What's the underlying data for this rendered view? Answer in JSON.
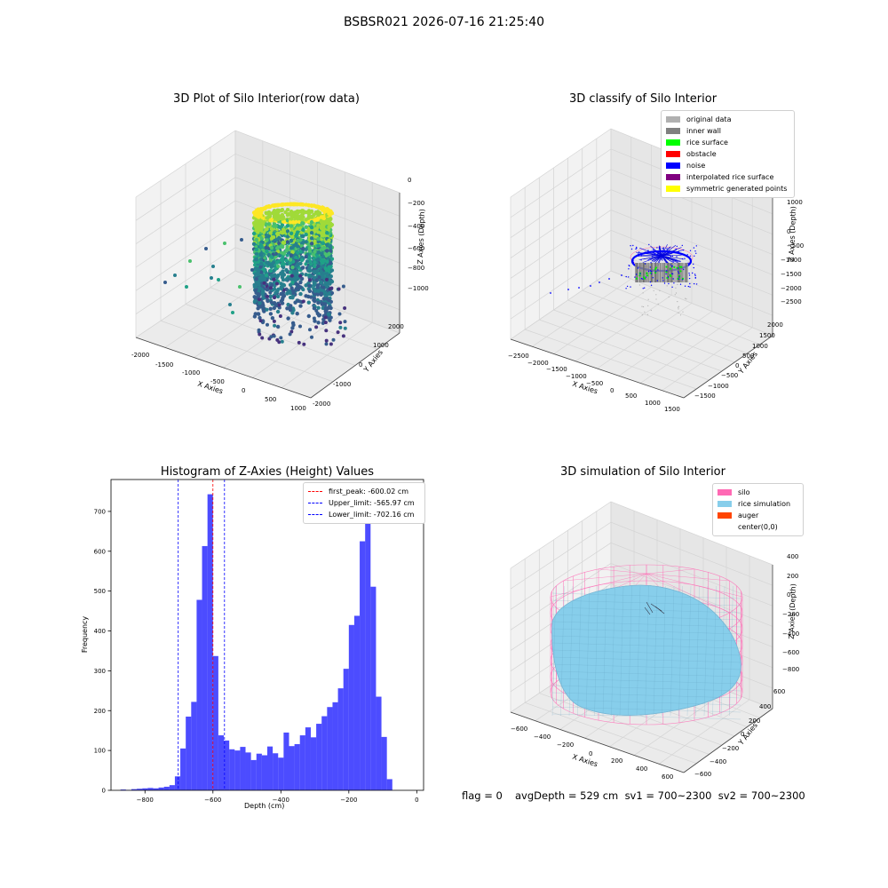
{
  "suptitle": "BSBSR021 2026-07-16 21:25:40",
  "panels": {
    "raw": {
      "title": "3D Plot of Silo Interior(row data)",
      "xlabel": "X Axies",
      "ylabel": "Y Axies",
      "zlabel": "Z Axies (Depth)",
      "xticks": [
        "-2000",
        "-1500",
        "-1000",
        "-500",
        "0",
        "500",
        "1000"
      ],
      "yticks": [
        "-2000",
        "-1000",
        "0",
        "1000",
        "2000"
      ],
      "zticks": [
        "0",
        "−200",
        "−400",
        "−600",
        "−800",
        "−1000"
      ]
    },
    "classify": {
      "title": "3D classify of Silo Interior",
      "xlabel": "X Axies",
      "ylabel": "Y Axies",
      "zlabel": "Z Axies (Depth)",
      "xticks": [
        "−2500",
        "−2000",
        "−1500",
        "−1000",
        "−500",
        "0",
        "500",
        "1000",
        "1500"
      ],
      "yticks": [
        "−1500",
        "−1000",
        "−500",
        "0",
        "500",
        "1000",
        "1500",
        "2000"
      ],
      "zticks": [
        "1000",
        "500",
        "0",
        "−500",
        "−1000",
        "−1500",
        "−2000",
        "−2500"
      ],
      "zticks_partial": "500",
      "legend": [
        {
          "label": "original data",
          "color": "#b0b0b0"
        },
        {
          "label": "inner wall",
          "color": "#808080"
        },
        {
          "label": "rice surface",
          "color": "#00ff00"
        },
        {
          "label": "obstacle",
          "color": "#ff0000"
        },
        {
          "label": "noise",
          "color": "#0000ff"
        },
        {
          "label": "interpolated rice surface",
          "color": "#800080"
        },
        {
          "label": "symmetric generated points",
          "color": "#ffff00"
        }
      ]
    },
    "simulation": {
      "title": "3D simulation of Silo Interior",
      "xlabel": "X Axies",
      "ylabel": "Y Axies",
      "zlabel": "Z Axies (Depth)",
      "xticks": [
        "−600",
        "−400",
        "−200",
        "0",
        "200",
        "400",
        "600"
      ],
      "yticks": [
        "−600",
        "−400",
        "−200",
        "0",
        "200",
        "400",
        "600"
      ],
      "zticks": [
        "400",
        "200",
        "0",
        "−200",
        "−400",
        "−600",
        "−800"
      ],
      "legend": [
        {
          "label": "silo",
          "color": "#ff69b4"
        },
        {
          "label": "rice simulation",
          "color": "#87ceeb"
        },
        {
          "label": "auger",
          "color": "#ff4500"
        },
        {
          "label": "center(0,0)",
          "color": "#ffffff"
        }
      ]
    }
  },
  "chart_data": {
    "type": "bar",
    "title": "Histogram of Z-Axies (Height) Values",
    "xlabel": "Depth (cm)",
    "ylabel": "Frequency",
    "xlim": [
      -900,
      20
    ],
    "ylim": [
      0,
      780
    ],
    "xticks": [
      -800,
      -600,
      -400,
      -200,
      0
    ],
    "yticks": [
      0,
      100,
      200,
      300,
      400,
      500,
      600,
      700
    ],
    "bar_color": "#0000ff",
    "bin_width": 16,
    "bins": [
      {
        "start": -872,
        "value": 2
      },
      {
        "start": -856,
        "value": 1
      },
      {
        "start": -840,
        "value": 3
      },
      {
        "start": -824,
        "value": 4
      },
      {
        "start": -808,
        "value": 5
      },
      {
        "start": -792,
        "value": 6
      },
      {
        "start": -776,
        "value": 5
      },
      {
        "start": -760,
        "value": 7
      },
      {
        "start": -744,
        "value": 9
      },
      {
        "start": -728,
        "value": 13
      },
      {
        "start": -712,
        "value": 35
      },
      {
        "start": -696,
        "value": 105
      },
      {
        "start": -680,
        "value": 185
      },
      {
        "start": -664,
        "value": 222
      },
      {
        "start": -648,
        "value": 478
      },
      {
        "start": -632,
        "value": 613
      },
      {
        "start": -616,
        "value": 743
      },
      {
        "start": -600,
        "value": 337
      },
      {
        "start": -584,
        "value": 138
      },
      {
        "start": -568,
        "value": 125
      },
      {
        "start": -552,
        "value": 103
      },
      {
        "start": -536,
        "value": 100
      },
      {
        "start": -520,
        "value": 109
      },
      {
        "start": -504,
        "value": 95
      },
      {
        "start": -488,
        "value": 76
      },
      {
        "start": -472,
        "value": 92
      },
      {
        "start": -456,
        "value": 88
      },
      {
        "start": -440,
        "value": 110
      },
      {
        "start": -424,
        "value": 93
      },
      {
        "start": -408,
        "value": 82
      },
      {
        "start": -392,
        "value": 145
      },
      {
        "start": -376,
        "value": 111
      },
      {
        "start": -360,
        "value": 116
      },
      {
        "start": -344,
        "value": 138
      },
      {
        "start": -328,
        "value": 158
      },
      {
        "start": -312,
        "value": 133
      },
      {
        "start": -296,
        "value": 167
      },
      {
        "start": -280,
        "value": 186
      },
      {
        "start": -264,
        "value": 209
      },
      {
        "start": -248,
        "value": 221
      },
      {
        "start": -232,
        "value": 256
      },
      {
        "start": -216,
        "value": 305
      },
      {
        "start": -200,
        "value": 415
      },
      {
        "start": -184,
        "value": 438
      },
      {
        "start": -168,
        "value": 625
      },
      {
        "start": -152,
        "value": 680
      },
      {
        "start": -136,
        "value": 511
      },
      {
        "start": -120,
        "value": 235
      },
      {
        "start": -104,
        "value": 134
      },
      {
        "start": -88,
        "value": 28
      }
    ],
    "vlines": [
      {
        "label": "first_peak: -600.02 cm",
        "x": -600.02,
        "color": "#ff0000"
      },
      {
        "label": "Upper_limit: -565.97 cm",
        "x": -565.97,
        "color": "#0000ff"
      },
      {
        "label": "Lower_limit: -702.16 cm",
        "x": -702.16,
        "color": "#0000ff"
      }
    ]
  },
  "footer": {
    "flag": "flag = 0",
    "avg": "avgDepth = 529 cm  sv1 = 700~2300  sv2 = 700~2300"
  }
}
